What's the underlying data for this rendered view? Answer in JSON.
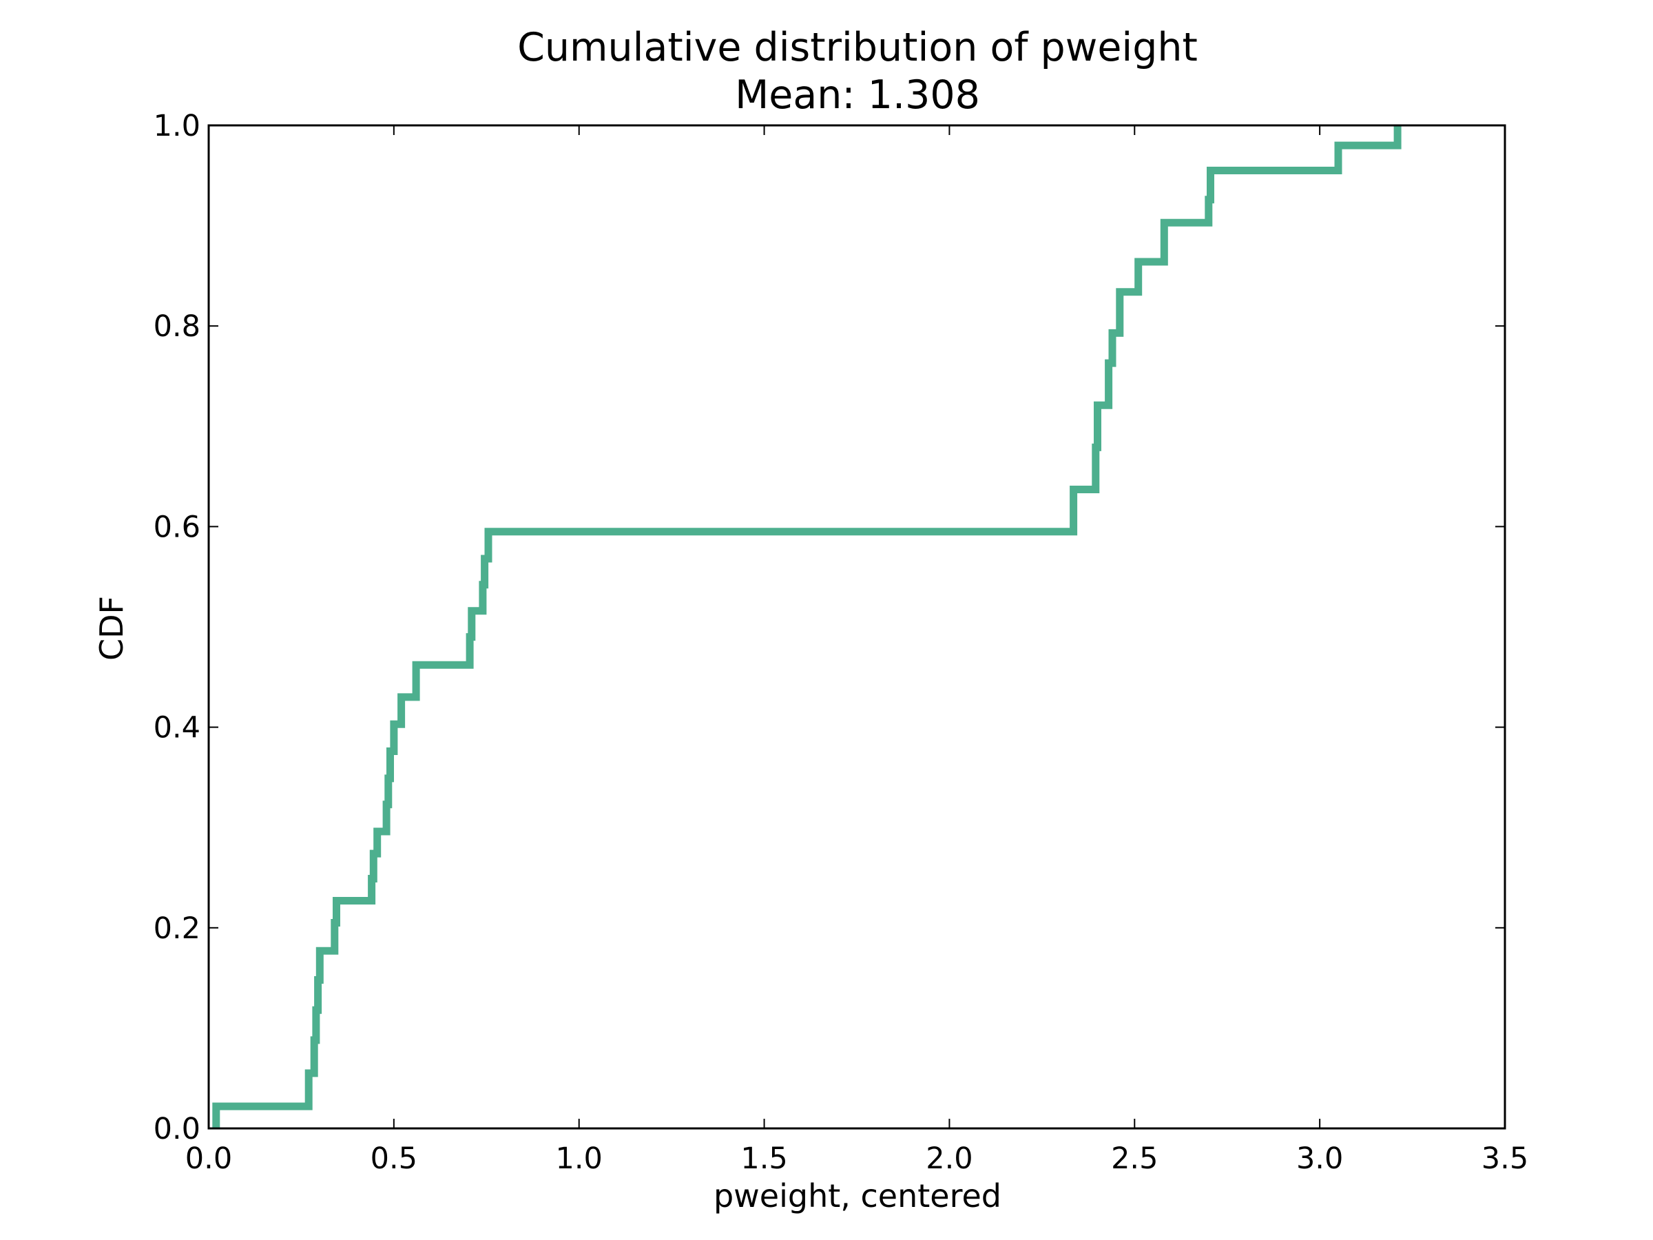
{
  "chart_data": {
    "type": "line",
    "step": true,
    "title": "Cumulative distribution of pweight",
    "subtitle": "Mean: 1.308",
    "xlabel": "pweight, centered",
    "ylabel": "CDF",
    "xlim": [
      0.0,
      3.5
    ],
    "ylim": [
      0.0,
      1.0
    ],
    "xticks": [
      "0.0",
      "0.5",
      "1.0",
      "1.5",
      "2.0",
      "2.5",
      "3.0",
      "3.5"
    ],
    "yticks": [
      "0.0",
      "0.2",
      "0.4",
      "0.6",
      "0.8",
      "1.0"
    ],
    "grid": false,
    "series": [
      {
        "color": "#4daf8e",
        "x": [
          0.02,
          0.27,
          0.285,
          0.29,
          0.295,
          0.3,
          0.34,
          0.345,
          0.44,
          0.445,
          0.455,
          0.48,
          0.485,
          0.49,
          0.5,
          0.52,
          0.56,
          0.705,
          0.71,
          0.74,
          0.745,
          0.755,
          2.335,
          2.395,
          2.4,
          2.43,
          2.44,
          2.46,
          2.51,
          2.58,
          2.7,
          2.705,
          3.05,
          3.21
        ],
        "y": [
          0.0,
          0.022,
          0.055,
          0.088,
          0.118,
          0.148,
          0.177,
          0.205,
          0.227,
          0.249,
          0.274,
          0.296,
          0.323,
          0.349,
          0.376,
          0.403,
          0.43,
          0.462,
          0.49,
          0.516,
          0.542,
          0.568,
          0.595,
          0.637,
          0.679,
          0.721,
          0.763,
          0.793,
          0.834,
          0.864,
          0.903,
          0.926,
          0.955,
          0.98
        ]
      }
    ]
  }
}
